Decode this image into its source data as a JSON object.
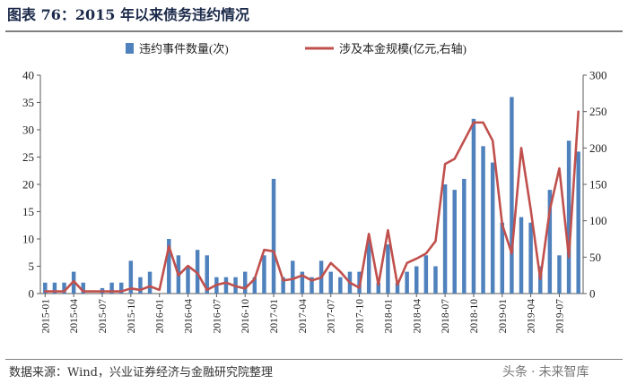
{
  "header": {
    "title": "图表 76：2015 年以来债务违约情况"
  },
  "footer": {
    "source": "数据来源：Wind，兴业证券经济与金融研究院整理"
  },
  "watermark": {
    "left": "头条",
    "right": "未来智库"
  },
  "colors": {
    "bar": "#4f81bd",
    "line": "#c0504d",
    "axis": "#595959",
    "text": "#222222"
  },
  "chart_data": {
    "type": "bar+line",
    "title": "",
    "legend": {
      "placement": "top-center",
      "entries": [
        "违约事件数量(次)",
        "涉及本金规模(亿元,右轴)"
      ]
    },
    "months": [
      "2015-01",
      "2015-02",
      "2015-03",
      "2015-04",
      "2015-05",
      "2015-06",
      "2015-07",
      "2015-08",
      "2015-09",
      "2015-10",
      "2015-11",
      "2015-12",
      "2016-01",
      "2016-02",
      "2016-03",
      "2016-04",
      "2016-05",
      "2016-06",
      "2016-07",
      "2016-08",
      "2016-09",
      "2016-10",
      "2016-11",
      "2016-12",
      "2017-01",
      "2017-02",
      "2017-03",
      "2017-04",
      "2017-05",
      "2017-06",
      "2017-07",
      "2017-08",
      "2017-09",
      "2017-10",
      "2017-11",
      "2017-12",
      "2018-01",
      "2018-02",
      "2018-03",
      "2018-04",
      "2018-05",
      "2018-06",
      "2018-07",
      "2018-08",
      "2018-09",
      "2018-10",
      "2018-11",
      "2018-12",
      "2019-01",
      "2019-02",
      "2019-03",
      "2019-04",
      "2019-05",
      "2019-06",
      "2019-07",
      "2019-08",
      "2019-09"
    ],
    "tick_labels": [
      "2015-01",
      "2015-04",
      "2015-07",
      "2015-10",
      "2016-01",
      "2016-04",
      "2016-07",
      "2016-10",
      "2017-01",
      "2017-04",
      "2017-07",
      "2017-10",
      "2018-01",
      "2018-04",
      "2018-07",
      "2018-10",
      "2019-01",
      "2019-04",
      "2019-07"
    ],
    "series": [
      {
        "name": "违约事件数量(次)",
        "kind": "bar",
        "axis": "left",
        "values": [
          2,
          2,
          2,
          4,
          2,
          0,
          1,
          2,
          2,
          6,
          3,
          4,
          0,
          10,
          7,
          5,
          8,
          7,
          3,
          3,
          3,
          4,
          3,
          7,
          21,
          3,
          6,
          4,
          3,
          6,
          4,
          3,
          4,
          4,
          10,
          2,
          9,
          2,
          4,
          5,
          7,
          5,
          20,
          19,
          21,
          32,
          27,
          24,
          13,
          36,
          14,
          13,
          5,
          19,
          7,
          28,
          26
        ]
      },
      {
        "name": "涉及本金规模(亿元,右轴)",
        "kind": "line",
        "axis": "right",
        "values": [
          3,
          3,
          3,
          17,
          3,
          3,
          3,
          3,
          3,
          7,
          5,
          10,
          5,
          65,
          25,
          38,
          28,
          5,
          12,
          15,
          10,
          7,
          20,
          60,
          58,
          18,
          20,
          25,
          18,
          22,
          42,
          30,
          15,
          8,
          82,
          12,
          87,
          12,
          42,
          48,
          55,
          72,
          178,
          185,
          210,
          235,
          235,
          210,
          95,
          55,
          200,
          115,
          20,
          115,
          172,
          50,
          250
        ]
      }
    ],
    "y_left": {
      "min": 0,
      "max": 40,
      "ticks": [
        0,
        5,
        10,
        15,
        20,
        25,
        30,
        35,
        40
      ]
    },
    "y_right": {
      "min": 0,
      "max": 300,
      "ticks": [
        0,
        50,
        100,
        150,
        200,
        250,
        300
      ]
    }
  }
}
